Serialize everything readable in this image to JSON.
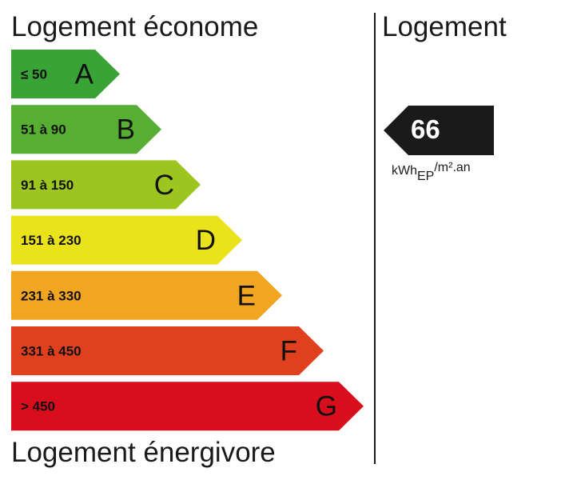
{
  "header": {
    "top_label": "Logement économe",
    "bottom_label": "Logement énergivore",
    "right_heading": "Logement"
  },
  "bands": [
    {
      "letter": "A",
      "range": "≤ 50",
      "color": "#3aa335"
    },
    {
      "letter": "B",
      "range": "51 à 90",
      "color": "#56ae32"
    },
    {
      "letter": "C",
      "range": "91 à 150",
      "color": "#9dc51f"
    },
    {
      "letter": "D",
      "range": "151 à 230",
      "color": "#eae31c"
    },
    {
      "letter": "E",
      "range": "231 à 330",
      "color": "#f1a521"
    },
    {
      "letter": "F",
      "range": "331 à 450",
      "color": "#e0401e"
    },
    {
      "letter": "G",
      "range": "> 450",
      "color": "#d80e1c"
    }
  ],
  "indicator": {
    "value": "66",
    "unit_main": "kWh",
    "unit_sub": "EP",
    "unit_sup": "/m².an",
    "color": "#1a1a1a"
  }
}
